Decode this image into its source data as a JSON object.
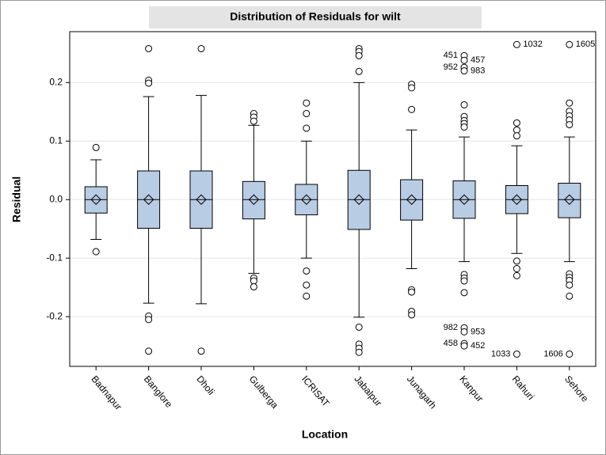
{
  "chart_data": {
    "type": "box",
    "title": "Distribution of Residuals for wilt",
    "xlabel": "Location",
    "ylabel": "Residual",
    "color": "#b8cce4",
    "grid": true,
    "ylim": [
      -0.285,
      0.287
    ],
    "yticks": [
      -0.2,
      -0.1,
      {
        "value": 0,
        "label": "0.0"
      },
      0.1,
      0.2
    ],
    "categories": [
      "Badnapur",
      "Banglore",
      "Dholi",
      "Gulberga",
      "ICRISAT",
      "Jabalpur",
      "Junagarh",
      "Kanpur",
      "Rahuri",
      "Sehore"
    ],
    "boxes": [
      {
        "min": -0.068,
        "q1": -0.023,
        "median": 0,
        "q3": 0.022,
        "max": 0.068,
        "mean": 0,
        "outliers": [
          0.089,
          -0.089
        ]
      },
      {
        "min": -0.177,
        "q1": -0.049,
        "median": 0,
        "q3": 0.049,
        "max": 0.176,
        "mean": 0,
        "outliers": [
          0.258,
          0.204,
          0.199,
          -0.199,
          -0.205,
          -0.259
        ]
      },
      {
        "min": -0.178,
        "q1": -0.049,
        "median": 0,
        "q3": 0.049,
        "max": 0.178,
        "mean": 0,
        "outliers": [
          0.258,
          -0.259
        ]
      },
      {
        "min": -0.126,
        "q1": -0.033,
        "median": 0,
        "q3": 0.031,
        "max": 0.127,
        "mean": 0,
        "outliers": [
          0.147,
          0.141,
          0.134,
          -0.134,
          -0.139,
          -0.149
        ]
      },
      {
        "min": -0.1,
        "q1": -0.026,
        "median": 0,
        "q3": 0.026,
        "max": 0.1,
        "mean": 0,
        "outliers": [
          0.165,
          0.147,
          0.122,
          -0.122,
          -0.146,
          -0.165
        ]
      },
      {
        "min": -0.201,
        "q1": -0.051,
        "median": 0,
        "q3": 0.05,
        "max": 0.2,
        "mean": 0,
        "outliers": [
          0.258,
          0.253,
          0.246,
          0.219,
          -0.218,
          -0.247,
          -0.254,
          -0.261
        ]
      },
      {
        "min": -0.118,
        "q1": -0.035,
        "median": 0,
        "q3": 0.034,
        "max": 0.119,
        "mean": 0,
        "outliers": [
          0.197,
          0.191,
          0.154,
          -0.154,
          -0.158,
          -0.191,
          -0.197
        ]
      },
      {
        "min": -0.106,
        "q1": -0.032,
        "median": 0,
        "q3": 0.032,
        "max": 0.107,
        "mean": 0,
        "outliers": [
          0.246,
          0.238,
          0.226,
          0.22,
          0.162,
          0.142,
          0.135,
          0.13,
          0.124,
          -0.128,
          -0.134,
          -0.139,
          -0.159,
          -0.219,
          -0.226,
          -0.246,
          -0.25
        ],
        "outlier_labels": [
          "451",
          "457",
          "952",
          "983",
          null,
          null,
          null,
          null,
          null,
          null,
          null,
          null,
          null,
          "982",
          "953",
          "458",
          "452"
        ],
        "outlier_label_sides": [
          "left",
          "right",
          "left",
          "right",
          null,
          null,
          null,
          null,
          null,
          null,
          null,
          null,
          null,
          "left",
          "right",
          "left",
          "right"
        ]
      },
      {
        "min": -0.092,
        "q1": -0.024,
        "median": 0,
        "q3": 0.024,
        "max": 0.092,
        "mean": 0,
        "outliers": [
          0.265,
          0.131,
          0.119,
          0.109,
          -0.105,
          -0.118,
          -0.13,
          -0.264
        ],
        "outlier_labels": [
          "1032",
          null,
          null,
          null,
          null,
          null,
          null,
          "1033"
        ],
        "outlier_label_sides": [
          "right",
          null,
          null,
          null,
          null,
          null,
          null,
          "left"
        ]
      },
      {
        "min": -0.106,
        "q1": -0.031,
        "median": 0,
        "q3": 0.028,
        "max": 0.107,
        "mean": 0,
        "outliers": [
          0.265,
          0.165,
          0.151,
          0.143,
          0.136,
          0.128,
          -0.127,
          -0.133,
          -0.138,
          -0.146,
          -0.165,
          -0.264
        ],
        "outlier_labels": [
          "1605",
          null,
          null,
          null,
          null,
          null,
          null,
          null,
          null,
          null,
          null,
          "1606"
        ],
        "outlier_label_sides": [
          "right",
          null,
          null,
          null,
          null,
          null,
          null,
          null,
          null,
          null,
          null,
          "left"
        ]
      }
    ]
  }
}
